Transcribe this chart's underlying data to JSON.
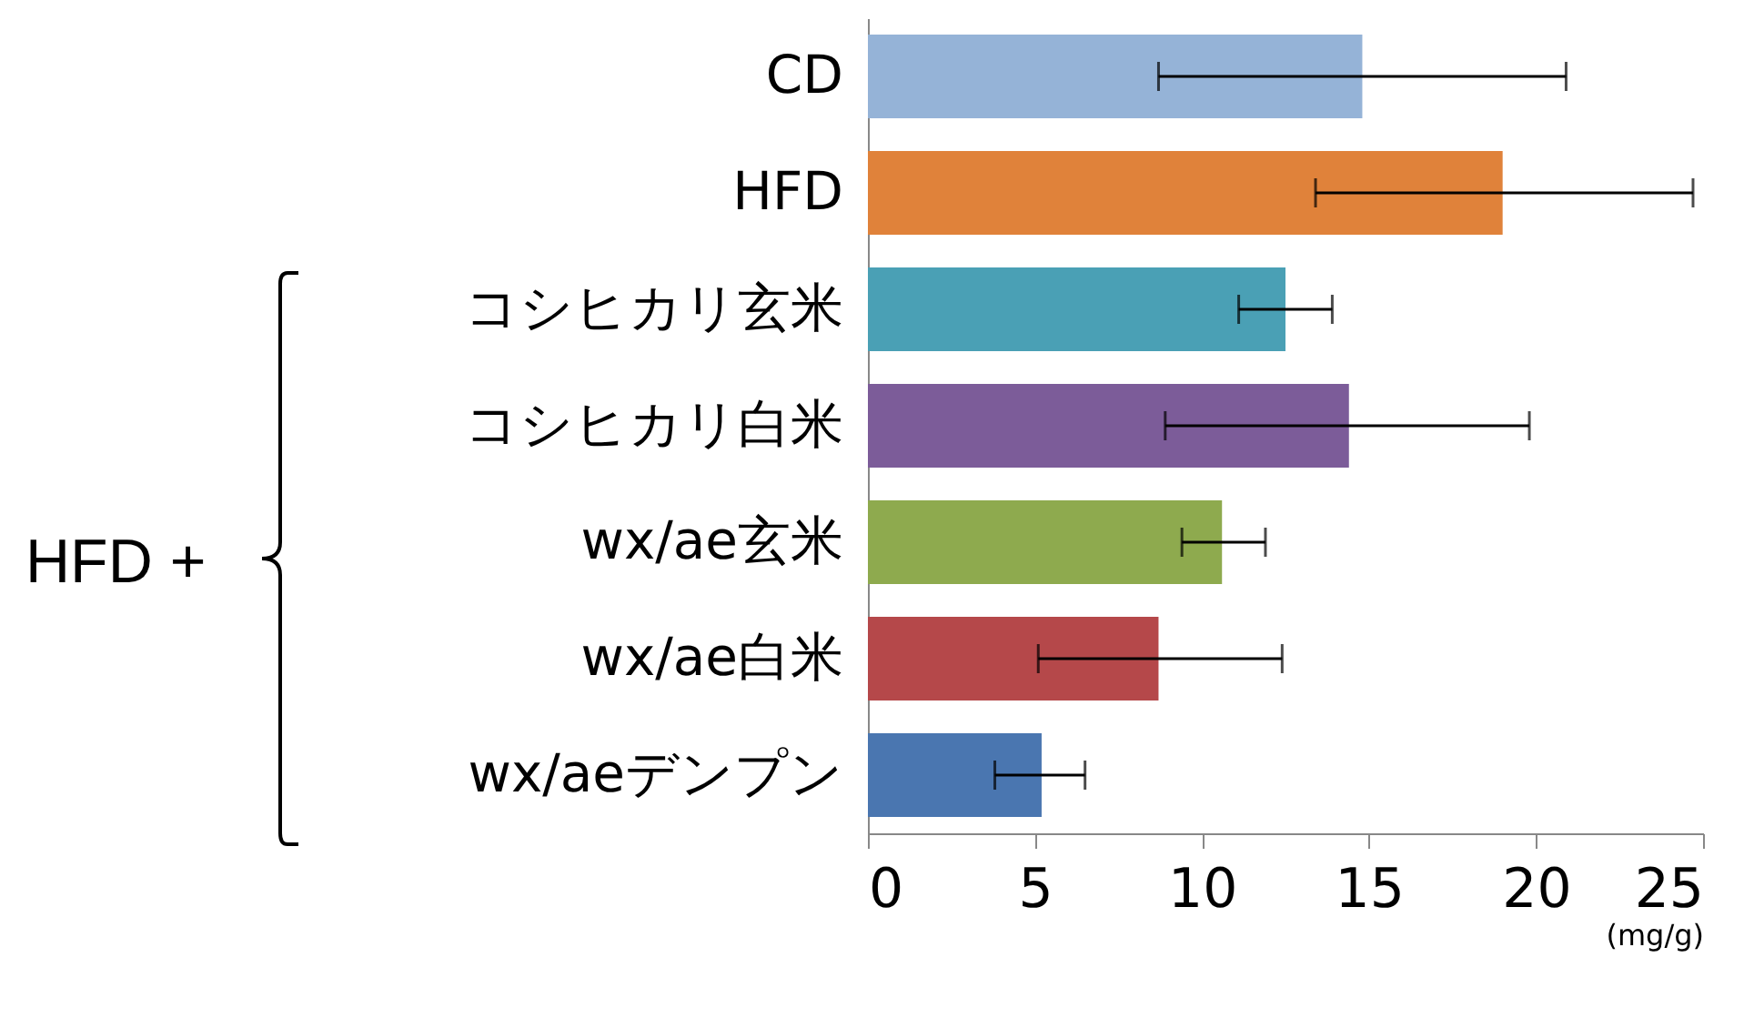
{
  "chart_data": {
    "type": "bar",
    "orientation": "horizontal",
    "categories": [
      "CD",
      "HFD",
      "コシヒカリ玄米",
      "コシヒカリ白米",
      "wx/ae玄米",
      "wx/ae白米",
      "wx/aeデンプン"
    ],
    "values": [
      14.8,
      19.0,
      12.5,
      14.4,
      10.6,
      8.7,
      5.2
    ],
    "colors": [
      "#95b3d7",
      "#e0823a",
      "#4aa0b5",
      "#7c5c99",
      "#8eaa4e",
      "#b5484a",
      "#4a76b0"
    ],
    "errors": [
      [
        8.7,
        20.9
      ],
      [
        13.4,
        24.7
      ],
      [
        11.1,
        13.9
      ],
      [
        8.9,
        19.8
      ],
      [
        9.4,
        11.9
      ],
      [
        5.1,
        12.4
      ],
      [
        3.8,
        6.5
      ]
    ],
    "xlim": [
      0,
      25
    ],
    "xticks": [
      0,
      5,
      10,
      15,
      20,
      25
    ],
    "xlabel": "(mg/g)",
    "grid": false,
    "annotations": [
      "HFD +"
    ]
  }
}
